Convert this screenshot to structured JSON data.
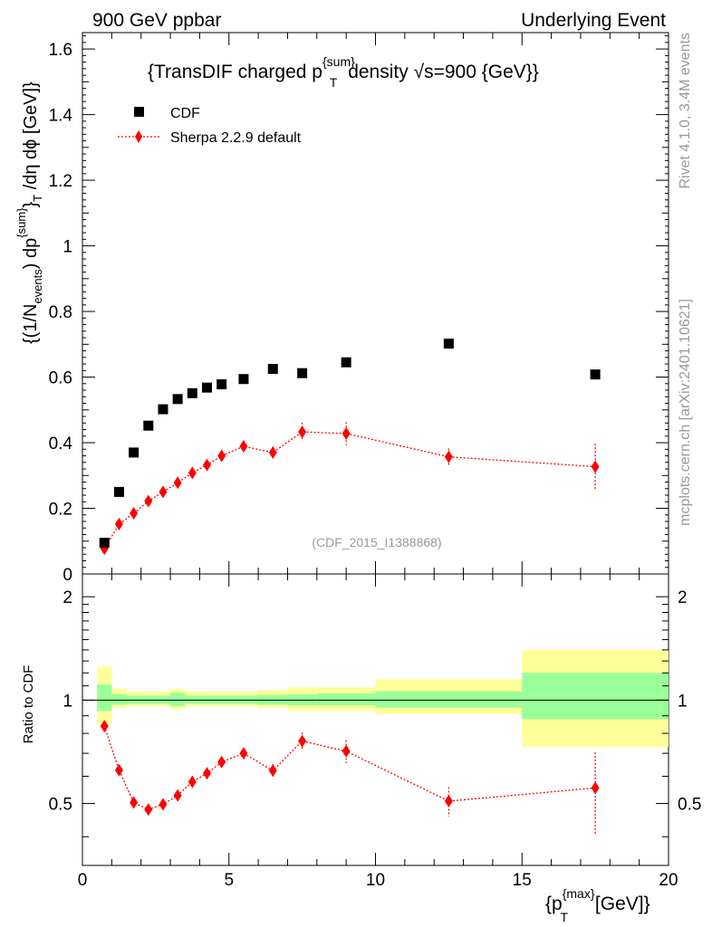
{
  "header": {
    "left": "900 GeV ppbar",
    "right": "Underlying Event"
  },
  "side": {
    "rivet": "Rivet 4.1.0,  3.4M events",
    "mcplots": "mcplots.cern.ch [arXiv:2401.10621]"
  },
  "chart_data": {
    "type": "scatter",
    "title": "{TransDIF charged p{sum}T density √s=900 {GeV}}",
    "title_parts": {
      "pre": "{TransDIF charged p",
      "sup": "{sum}",
      "sub": "T",
      "post": " density √s=900 {GeV}}"
    },
    "watermark": "(CDF_2015_I1388868)",
    "ylabel_main": "{(1/Nevents) dp{sum}T /dη  dϕ [GeV]}",
    "ylabel_parts": {
      "a": "{(1/N",
      "events": "events",
      "b": ") dp",
      "sum": "{sum}",
      "c": "}",
      "T": "T",
      "d": " /dη  dϕ [GeV]}"
    },
    "ylabel_ratio": "Ratio to CDF",
    "xlabel": "{p{max}T [GeV]}",
    "xlabel_parts": {
      "pre": "{p",
      "sup": "{max}",
      "sub": "T",
      "post": " [GeV]}"
    },
    "xlim": [
      0,
      20
    ],
    "ylim_main": [
      0,
      1.65
    ],
    "ylim_ratio": [
      0.33,
      2.33
    ],
    "xticks": [
      0,
      5,
      10,
      15,
      20
    ],
    "xtick_labels": [
      "0",
      "5",
      "10",
      "15",
      "20"
    ],
    "yticks_main": [
      0.2,
      0.4,
      0.6,
      0.8,
      1,
      1.2,
      1.4,
      1.6
    ],
    "ytick_labels_main": [
      "0.2",
      "0.4",
      "0.6",
      "0.8",
      "1",
      "1.2",
      "1.4",
      "1.6"
    ],
    "ytick_zero_label": "0",
    "yticks_ratio": [
      0.5,
      1,
      2
    ],
    "ytick_labels_ratio": [
      "0.5",
      "1",
      "2"
    ],
    "legend": [
      {
        "name": "CDF",
        "marker": "square",
        "color": "#000000"
      },
      {
        "name": "Sherpa 2.2.9 default",
        "marker": "diamond",
        "color": "#ff0000",
        "line": "dotted"
      }
    ],
    "bins": [
      [
        0.5,
        1.0
      ],
      [
        1.0,
        1.5
      ],
      [
        1.5,
        2.0
      ],
      [
        2.0,
        2.5
      ],
      [
        2.5,
        3.0
      ],
      [
        3.0,
        3.5
      ],
      [
        3.5,
        4.0
      ],
      [
        4.0,
        4.5
      ],
      [
        4.5,
        5.0
      ],
      [
        5.0,
        6.0
      ],
      [
        6.0,
        7.0
      ],
      [
        7.0,
        8.0
      ],
      [
        8.0,
        10.0
      ],
      [
        10.0,
        15.0
      ],
      [
        15.0,
        20.0
      ]
    ],
    "x": [
      0.75,
      1.25,
      1.75,
      2.25,
      2.75,
      3.25,
      3.75,
      4.25,
      4.75,
      5.5,
      6.5,
      7.5,
      9.0,
      12.5,
      17.5
    ],
    "series": [
      {
        "name": "CDF",
        "values": [
          0.095,
          0.25,
          0.37,
          0.452,
          0.502,
          0.533,
          0.551,
          0.568,
          0.578,
          0.594,
          0.625,
          0.612,
          0.645,
          0.702,
          0.608
        ]
      },
      {
        "name": "Sherpa 2.2.9 default",
        "values": [
          0.077,
          0.152,
          0.185,
          0.222,
          0.25,
          0.278,
          0.308,
          0.332,
          0.36,
          0.389,
          0.37,
          0.433,
          0.428,
          0.357,
          0.327
        ],
        "errors": [
          0.008,
          0.008,
          0.008,
          0.008,
          0.008,
          0.009,
          0.009,
          0.01,
          0.01,
          0.012,
          0.018,
          0.028,
          0.035,
          0.025,
          0.07
        ]
      }
    ],
    "ratio": {
      "values": [
        0.84,
        0.625,
        0.503,
        0.48,
        0.497,
        0.528,
        0.578,
        0.612,
        0.66,
        0.7,
        0.623,
        0.76,
        0.71,
        0.508,
        0.555
      ],
      "errors": [
        0.02,
        0.02,
        0.015,
        0.015,
        0.015,
        0.015,
        0.015,
        0.015,
        0.018,
        0.02,
        0.03,
        0.045,
        0.055,
        0.05,
        0.15
      ],
      "band_green": [
        [
          0.93,
          1.11
        ],
        [
          0.97,
          1.04
        ],
        [
          0.975,
          1.03
        ],
        [
          0.975,
          1.03
        ],
        [
          0.975,
          1.03
        ],
        [
          0.96,
          1.05
        ],
        [
          0.975,
          1.03
        ],
        [
          0.975,
          1.03
        ],
        [
          0.975,
          1.03
        ],
        [
          0.975,
          1.03
        ],
        [
          0.97,
          1.035
        ],
        [
          0.965,
          1.04
        ],
        [
          0.965,
          1.045
        ],
        [
          0.95,
          1.06
        ],
        [
          0.88,
          1.2
        ]
      ],
      "band_yellow": [
        [
          0.85,
          1.25
        ],
        [
          0.95,
          1.08
        ],
        [
          0.96,
          1.06
        ],
        [
          0.96,
          1.06
        ],
        [
          0.96,
          1.06
        ],
        [
          0.94,
          1.08
        ],
        [
          0.96,
          1.06
        ],
        [
          0.96,
          1.06
        ],
        [
          0.96,
          1.06
        ],
        [
          0.96,
          1.06
        ],
        [
          0.95,
          1.07
        ],
        [
          0.93,
          1.09
        ],
        [
          0.93,
          1.09
        ],
        [
          0.91,
          1.15
        ],
        [
          0.73,
          1.4
        ]
      ]
    },
    "colors": {
      "green": "#99ff99",
      "yellow": "#ffff99",
      "red": "#ff0000",
      "black": "#000000",
      "grey": "#999999"
    }
  }
}
